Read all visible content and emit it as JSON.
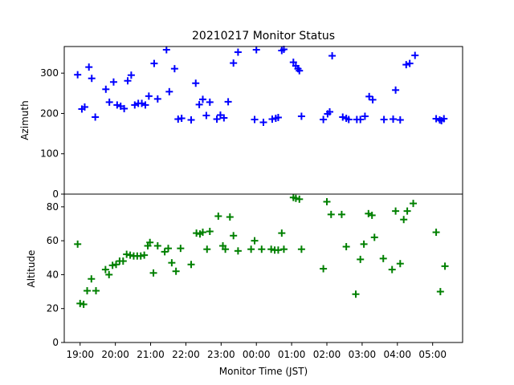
{
  "chart_data": {
    "type": "scatter",
    "title": "20210217 Monitor Status",
    "xlabel": "Monitor Time (JST)",
    "x_ticks": [
      "19:00",
      "20:00",
      "21:00",
      "22:00",
      "23:00",
      "00:00",
      "01:00",
      "02:00",
      "03:00",
      "04:00",
      "05:00"
    ],
    "x_range_hours": [
      18.55,
      29.85
    ],
    "panels": [
      {
        "ylabel": "Azimuth",
        "ylim": [
          0,
          366
        ],
        "yticks": [
          0,
          100,
          200,
          300
        ],
        "color": "#0000ff",
        "marker": "plus",
        "points": [
          [
            18.93,
            296
          ],
          [
            19.05,
            211
          ],
          [
            19.13,
            216
          ],
          [
            19.25,
            315
          ],
          [
            19.33,
            287
          ],
          [
            19.43,
            191
          ],
          [
            19.73,
            260
          ],
          [
            19.83,
            228
          ],
          [
            19.95,
            278
          ],
          [
            20.05,
            221
          ],
          [
            20.15,
            218
          ],
          [
            20.25,
            212
          ],
          [
            20.35,
            281
          ],
          [
            20.45,
            295
          ],
          [
            20.55,
            221
          ],
          [
            20.65,
            225
          ],
          [
            20.75,
            225
          ],
          [
            20.85,
            221
          ],
          [
            20.95,
            243
          ],
          [
            21.1,
            324
          ],
          [
            21.2,
            236
          ],
          [
            21.45,
            358
          ],
          [
            21.53,
            254
          ],
          [
            21.68,
            311
          ],
          [
            21.78,
            186
          ],
          [
            21.88,
            188
          ],
          [
            22.15,
            184
          ],
          [
            22.28,
            275
          ],
          [
            22.38,
            222
          ],
          [
            22.48,
            235
          ],
          [
            22.58,
            195
          ],
          [
            22.68,
            228
          ],
          [
            22.88,
            186
          ],
          [
            22.98,
            196
          ],
          [
            23.08,
            189
          ],
          [
            23.2,
            229
          ],
          [
            23.35,
            325
          ],
          [
            23.48,
            352
          ],
          [
            23.95,
            185
          ],
          [
            24.0,
            358
          ],
          [
            24.2,
            178
          ],
          [
            24.45,
            186
          ],
          [
            24.55,
            188
          ],
          [
            24.62,
            190
          ],
          [
            24.72,
            356
          ],
          [
            24.78,
            359
          ],
          [
            25.05,
            327
          ],
          [
            25.12,
            318
          ],
          [
            25.18,
            311
          ],
          [
            25.22,
            306
          ],
          [
            25.28,
            193
          ],
          [
            25.9,
            185
          ],
          [
            26.02,
            199
          ],
          [
            26.08,
            204
          ],
          [
            26.15,
            343
          ],
          [
            26.45,
            191
          ],
          [
            26.55,
            188
          ],
          [
            26.62,
            185
          ],
          [
            26.85,
            185
          ],
          [
            26.95,
            185
          ],
          [
            27.08,
            193
          ],
          [
            27.2,
            242
          ],
          [
            27.3,
            234
          ],
          [
            27.62,
            185
          ],
          [
            27.88,
            186
          ],
          [
            27.95,
            258
          ],
          [
            28.08,
            184
          ],
          [
            28.25,
            321
          ],
          [
            28.35,
            324
          ],
          [
            28.5,
            344
          ],
          [
            29.1,
            187
          ],
          [
            29.2,
            184
          ],
          [
            29.25,
            182
          ],
          [
            29.32,
            187
          ]
        ]
      },
      {
        "ylabel": "Altitude",
        "ylim": [
          0,
          87.5
        ],
        "yticks": [
          0,
          20,
          40,
          60,
          80
        ],
        "color": "#008000",
        "marker": "plus",
        "points": [
          [
            18.93,
            58
          ],
          [
            19.0,
            23
          ],
          [
            19.1,
            22.5
          ],
          [
            19.2,
            30.5
          ],
          [
            19.32,
            37.5
          ],
          [
            19.45,
            30.5
          ],
          [
            19.72,
            43
          ],
          [
            19.82,
            40
          ],
          [
            19.92,
            45.5
          ],
          [
            20.02,
            46
          ],
          [
            20.12,
            48
          ],
          [
            20.22,
            48
          ],
          [
            20.32,
            52
          ],
          [
            20.42,
            51.5
          ],
          [
            20.52,
            51
          ],
          [
            20.62,
            51
          ],
          [
            20.72,
            51
          ],
          [
            20.82,
            51.5
          ],
          [
            20.92,
            57
          ],
          [
            20.98,
            59
          ],
          [
            21.08,
            41
          ],
          [
            21.2,
            57
          ],
          [
            21.4,
            53.5
          ],
          [
            21.5,
            55.5
          ],
          [
            21.6,
            47
          ],
          [
            21.72,
            42
          ],
          [
            21.85,
            55.5
          ],
          [
            22.15,
            46
          ],
          [
            22.3,
            64.5
          ],
          [
            22.4,
            64
          ],
          [
            22.48,
            65
          ],
          [
            22.6,
            55
          ],
          [
            22.68,
            65.5
          ],
          [
            22.92,
            74.5
          ],
          [
            23.05,
            57
          ],
          [
            23.12,
            55
          ],
          [
            23.25,
            74
          ],
          [
            23.35,
            63
          ],
          [
            23.48,
            54
          ],
          [
            23.85,
            55
          ],
          [
            23.95,
            60
          ],
          [
            24.15,
            55
          ],
          [
            24.42,
            55
          ],
          [
            24.52,
            54.5
          ],
          [
            24.62,
            54.5
          ],
          [
            24.72,
            64.5
          ],
          [
            24.78,
            55
          ],
          [
            25.05,
            85.5
          ],
          [
            25.12,
            85
          ],
          [
            25.22,
            84.5
          ],
          [
            25.28,
            55
          ],
          [
            25.9,
            43.5
          ],
          [
            26.0,
            83
          ],
          [
            26.12,
            75.5
          ],
          [
            26.42,
            75.5
          ],
          [
            26.55,
            56.5
          ],
          [
            26.82,
            28.5
          ],
          [
            26.95,
            49
          ],
          [
            27.05,
            58
          ],
          [
            27.18,
            76
          ],
          [
            27.28,
            75
          ],
          [
            27.35,
            62
          ],
          [
            27.6,
            49.5
          ],
          [
            27.85,
            43
          ],
          [
            27.95,
            77.5
          ],
          [
            28.08,
            46.5
          ],
          [
            28.18,
            72.5
          ],
          [
            28.28,
            77.5
          ],
          [
            28.45,
            82
          ],
          [
            29.1,
            65
          ],
          [
            29.22,
            30
          ],
          [
            29.35,
            45
          ]
        ]
      }
    ]
  }
}
